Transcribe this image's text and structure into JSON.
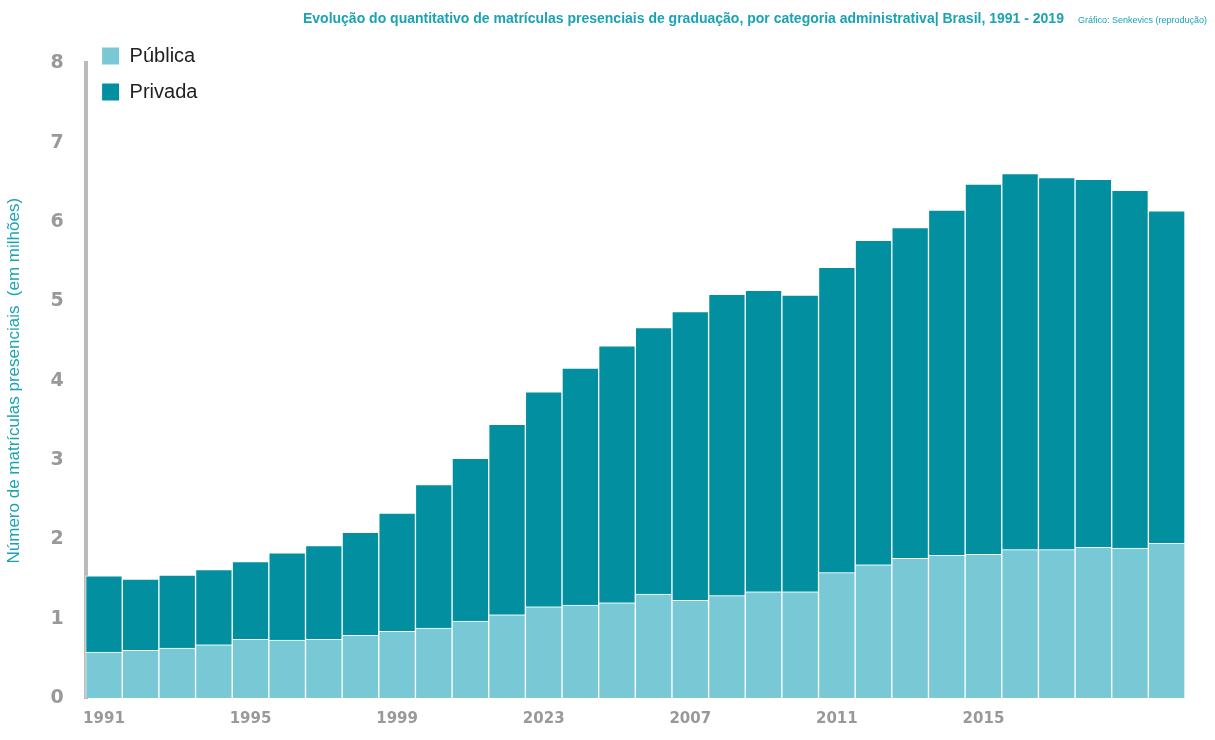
{
  "chart_data": {
    "type": "bar",
    "title": "Evolução do quantitativo de matrículas presenciais de graduação, por categoria administrativa| Brasil, 1991 - 2019",
    "ylabel": "Número de matrículas presenciais  (em milhões)",
    "annotations": [
      "Gráfico: Senkevics (reprodução)"
    ],
    "categories": [
      "1991",
      null,
      null,
      null,
      "1995",
      null,
      null,
      null,
      "1999",
      null,
      null,
      null,
      "2023",
      null,
      null,
      null,
      "2007",
      null,
      null,
      null,
      "2011",
      null,
      null,
      null,
      "2015",
      null,
      null,
      null,
      null,
      null
    ],
    "stacked": true,
    "series": [
      {
        "name": "Pública",
        "color": "#79c8d5",
        "values": [
          0.58,
          0.6,
          0.63,
          0.67,
          0.74,
          0.73,
          0.74,
          0.79,
          0.84,
          0.88,
          0.97,
          1.05,
          1.15,
          1.17,
          1.2,
          1.31,
          1.23,
          1.29,
          1.34,
          1.34,
          1.58,
          1.68,
          1.76,
          1.8,
          1.81,
          1.87,
          1.87,
          1.9,
          1.89,
          1.95
        ]
      },
      {
        "name": "Privada",
        "color": "#028fa0",
        "values": [
          0.96,
          0.9,
          0.92,
          0.95,
          0.98,
          1.1,
          1.18,
          1.3,
          1.49,
          1.81,
          2.05,
          2.4,
          2.71,
          2.99,
          3.24,
          3.36,
          3.64,
          3.8,
          3.8,
          3.74,
          3.85,
          4.09,
          4.17,
          4.35,
          4.67,
          4.74,
          4.69,
          4.64,
          4.51,
          4.19
        ]
      }
    ],
    "ylim": [
      0,
      8
    ],
    "yticks": [
      0,
      1,
      2,
      3,
      4,
      5,
      6,
      7,
      8
    ],
    "grid": false,
    "legend": "top left"
  }
}
